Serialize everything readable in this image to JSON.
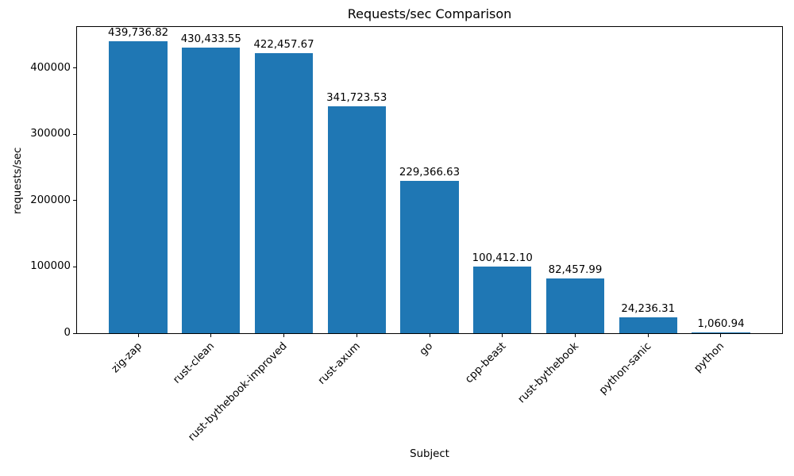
{
  "chart_data": {
    "type": "bar",
    "title": "Requests/sec Comparison",
    "xlabel": "Subject",
    "ylabel": "requests/sec",
    "categories": [
      "zig-zap",
      "rust-clean",
      "rust-bythebook-improved",
      "rust-axum",
      "go",
      "cpp-beast",
      "rust-bythebook",
      "python-sanic",
      "python"
    ],
    "values": [
      439736.82,
      430433.55,
      422457.67,
      341723.53,
      229366.63,
      100412.1,
      82457.99,
      24236.31,
      1060.94
    ],
    "value_labels": [
      "439,736.82",
      "430,433.55",
      "422,457.67",
      "341,723.53",
      "229,366.63",
      "100,412.10",
      "82,457.99",
      "24,236.31",
      "1,060.94"
    ],
    "bar_color": "#1f77b4",
    "bar_width": 0.8,
    "xlim": [
      -0.84,
      8.84
    ],
    "ylim": [
      0,
      461723.66
    ],
    "yticks": [
      0,
      100000,
      200000,
      300000,
      400000
    ],
    "x_tick_rotation": 45,
    "grid": false,
    "legend": "none"
  }
}
